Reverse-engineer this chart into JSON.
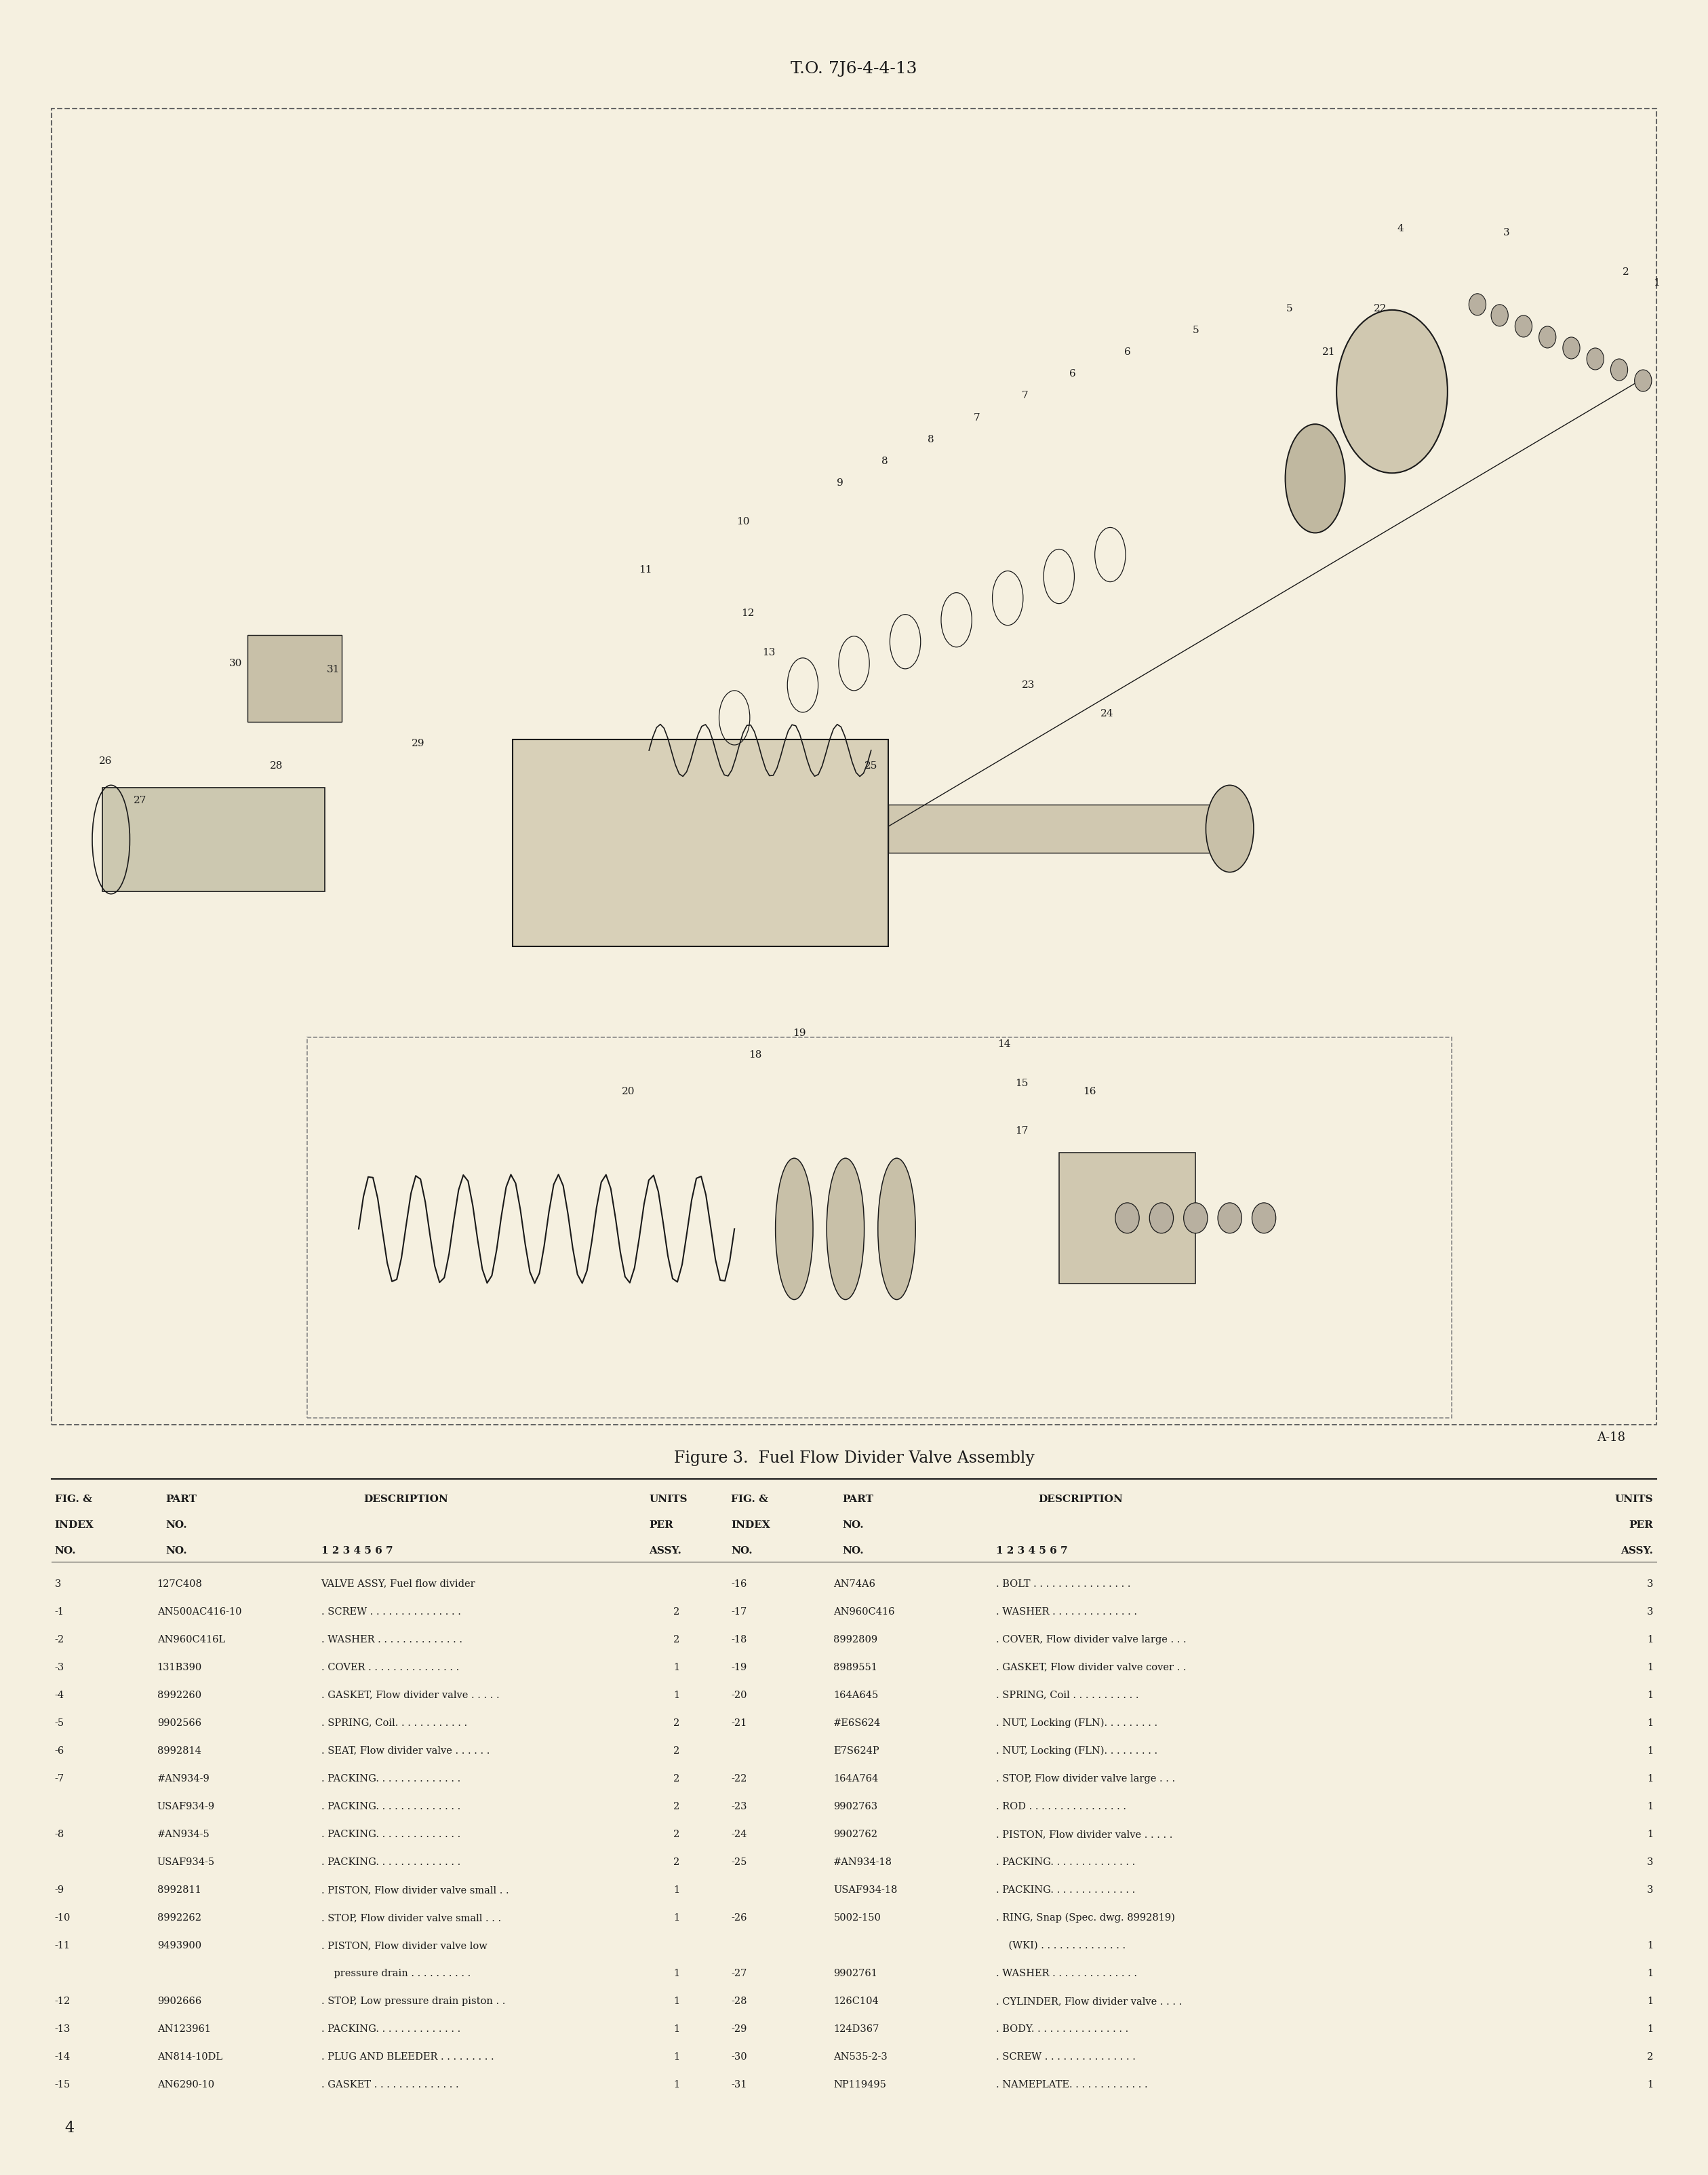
{
  "page_title": "T.O. 7J6-4-4-13",
  "figure_caption": "Figure 3.  Fuel Flow Divider Valve Assembly",
  "page_number": "4",
  "page_ref": "A-18",
  "bg_color": "#f5f0e0",
  "text_color": "#1a1a1a",
  "left_col": [
    [
      "3",
      "127C408",
      "VALVE ASSY, Fuel flow divider",
      ""
    ],
    [
      "-1",
      "AN500AC416-10",
      ". SCREW . . . . . . . . . . . . . . .",
      "2"
    ],
    [
      "-2",
      "AN960C416L",
      ". WASHER . . . . . . . . . . . . . .",
      "2"
    ],
    [
      "-3",
      "131B390",
      ". COVER . . . . . . . . . . . . . . .",
      "1"
    ],
    [
      "-4",
      "8992260",
      ". GASKET, Flow divider valve . . . . .",
      "1"
    ],
    [
      "-5",
      "9902566",
      ". SPRING, Coil. . . . . . . . . . . .",
      "2"
    ],
    [
      "-6",
      "8992814",
      ". SEAT, Flow divider valve . . . . . .",
      "2"
    ],
    [
      "-7",
      "#AN934-9",
      ". PACKING. . . . . . . . . . . . . .",
      "2"
    ],
    [
      "",
      "USAF934-9",
      ". PACKING. . . . . . . . . . . . . .",
      "2"
    ],
    [
      "-8",
      "#AN934-5",
      ". PACKING. . . . . . . . . . . . . .",
      "2"
    ],
    [
      "",
      "USAF934-5",
      ". PACKING. . . . . . . . . . . . . .",
      "2"
    ],
    [
      "-9",
      "8992811",
      ". PISTON, Flow divider valve small . .",
      "1"
    ],
    [
      "-10",
      "8992262",
      ". STOP, Flow divider valve small . . .",
      "1"
    ],
    [
      "-11",
      "9493900",
      ". PISTON, Flow divider valve low",
      ""
    ],
    [
      "",
      "",
      "    pressure drain . . . . . . . . . .",
      "1"
    ],
    [
      "-12",
      "9902666",
      ". STOP, Low pressure drain piston . .",
      "1"
    ],
    [
      "-13",
      "AN123961",
      ". PACKING. . . . . . . . . . . . . .",
      "1"
    ],
    [
      "-14",
      "AN814-10DL",
      ". PLUG AND BLEEDER . . . . . . . . .",
      "1"
    ],
    [
      "-15",
      "AN6290-10",
      ". GASKET . . . . . . . . . . . . . .",
      "1"
    ]
  ],
  "right_col": [
    [
      "-16",
      "AN74A6",
      ". BOLT . . . . . . . . . . . . . . . .",
      "3"
    ],
    [
      "-17",
      "AN960C416",
      ". WASHER . . . . . . . . . . . . . .",
      "3"
    ],
    [
      "-18",
      "8992809",
      ". COVER, Flow divider valve large . . .",
      "1"
    ],
    [
      "-19",
      "8989551",
      ". GASKET, Flow divider valve cover . .",
      "1"
    ],
    [
      "-20",
      "164A645",
      ". SPRING, Coil . . . . . . . . . . .",
      "1"
    ],
    [
      "-21",
      "#E6S624",
      ". NUT, Locking (FLN). . . . . . . . .",
      "1"
    ],
    [
      "",
      "E7S624P",
      ". NUT, Locking (FLN). . . . . . . . .",
      "1"
    ],
    [
      "-22",
      "164A764",
      ". STOP, Flow divider valve large . . .",
      "1"
    ],
    [
      "-23",
      "9902763",
      ". ROD . . . . . . . . . . . . . . . .",
      "1"
    ],
    [
      "-24",
      "9902762",
      ". PISTON, Flow divider valve . . . . .",
      "1"
    ],
    [
      "-25",
      "#AN934-18",
      ". PACKING. . . . . . . . . . . . . .",
      "3"
    ],
    [
      "",
      "USAF934-18",
      ". PACKING. . . . . . . . . . . . . .",
      "3"
    ],
    [
      "-26",
      "5002-150",
      ". RING, Snap (Spec. dwg. 8992819)",
      ""
    ],
    [
      "",
      "",
      "    (WKI) . . . . . . . . . . . . . .",
      "1"
    ],
    [
      "-27",
      "9902761",
      ". WASHER . . . . . . . . . . . . . .",
      "1"
    ],
    [
      "-28",
      "126C104",
      ". CYLINDER, Flow divider valve . . . .",
      "1"
    ],
    [
      "-29",
      "124D367",
      ". BODY. . . . . . . . . . . . . . . .",
      "1"
    ],
    [
      "-30",
      "AN535-2-3",
      ". SCREW . . . . . . . . . . . . . . .",
      "2"
    ],
    [
      "-31",
      "NP119495",
      ". NAMEPLATE. . . . . . . . . . . . .",
      "1"
    ]
  ]
}
